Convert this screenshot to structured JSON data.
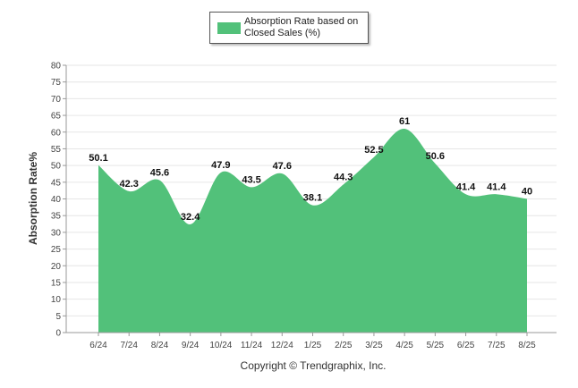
{
  "legend": {
    "label": "Absorption Rate based on Closed Sales (%)",
    "color": "#52c17a"
  },
  "copyright": "Copyright © Trendgraphix, Inc.",
  "chart_data": {
    "type": "area",
    "title": "",
    "xlabel": "",
    "ylabel": "Absorption Rate%",
    "categories": [
      "6/24",
      "7/24",
      "8/24",
      "9/24",
      "10/24",
      "11/24",
      "12/24",
      "1/25",
      "2/25",
      "3/25",
      "4/25",
      "5/25",
      "6/25",
      "7/25",
      "8/25"
    ],
    "series": [
      {
        "name": "Absorption Rate based on Closed Sales (%)",
        "values": [
          50.1,
          42.3,
          45.6,
          32.4,
          47.9,
          43.5,
          47.6,
          38.1,
          44.3,
          52.5,
          61,
          50.6,
          41.4,
          41.4,
          40
        ],
        "labels": [
          "50.1",
          "42.3",
          "45.6",
          "32.4",
          "47.9",
          "43.5",
          "47.6",
          "38.1",
          "44.3",
          "52.5",
          "61",
          "50.6",
          "41.4",
          "41.4",
          "40"
        ],
        "color": "#52c17a"
      }
    ],
    "ylim": [
      0,
      80
    ],
    "yticks": [
      "0",
      "5",
      "10",
      "15",
      "20",
      "25",
      "30",
      "35",
      "40",
      "45",
      "50",
      "55",
      "60",
      "65",
      "70",
      "75",
      "80"
    ],
    "grid": true,
    "legend_position": "top-center"
  }
}
